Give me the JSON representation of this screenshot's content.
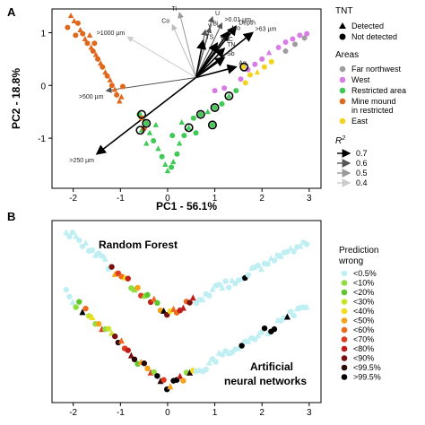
{
  "chart_data": [
    {
      "panel": "A",
      "type": "scatter",
      "xlabel": "PC1 - 56.1%",
      "ylabel": "PC2 - 18.8%",
      "xlim": [
        -2.45,
        3.25
      ],
      "ylim": [
        -1.95,
        1.45
      ],
      "xticks": [
        -2,
        -1,
        0,
        1,
        2,
        3
      ],
      "yticks": [
        1,
        0,
        -1
      ],
      "grid": false,
      "legends": {
        "tnt": {
          "title": "TNT",
          "entries": [
            {
              "label": "Detected",
              "marker": "triangle"
            },
            {
              "label": "Not detected",
              "marker": "circle"
            }
          ]
        },
        "areas": {
          "title": "Areas",
          "entries": [
            {
              "label": "Far northwest",
              "color": "#9e9e9e"
            },
            {
              "label": "West",
              "color": "#d97be6"
            },
            {
              "label": "Restricted area",
              "color": "#3fca55"
            },
            {
              "label": "Mine mound",
              "label2": "in restricted",
              "color": "#e0681c"
            },
            {
              "label": "East",
              "color": "#f2d320"
            }
          ]
        },
        "r2": {
          "title": "R",
          "sup": "2",
          "entries": [
            {
              "label": "0.7",
              "shade": "#000000"
            },
            {
              "label": "0.6",
              "shade": "#555555"
            },
            {
              "label": "0.5",
              "shade": "#999999"
            },
            {
              "label": "0.4",
              "shade": "#cccccc"
            }
          ]
        }
      },
      "loadings": [
        {
          "label": "Ti",
          "x": 0.25,
          "y": 1.38,
          "shade": "#999999"
        },
        {
          "label": "Co",
          "x": 0.1,
          "y": 1.15,
          "shade": "#bbbbbb"
        },
        {
          "label": "U",
          "x": 0.95,
          "y": 1.3,
          "shade": "#555555"
        },
        {
          "label": ">0.01 µm",
          "x": 1.15,
          "y": 1.18,
          "shade": "#555555"
        },
        {
          "label": "V",
          "x": 0.8,
          "y": 1.05,
          "shade": "#555555"
        },
        {
          "label": "Bi",
          "x": 0.9,
          "y": 1.1,
          "shade": "#555555"
        },
        {
          "label": "Depth",
          "x": 1.45,
          "y": 1.12,
          "shade": "#000000"
        },
        {
          "label": "Mo",
          "x": 1.3,
          "y": 1.02,
          "shade": "#000000"
        },
        {
          "label": ">63 µm",
          "x": 1.8,
          "y": 1.0,
          "shade": "#000000"
        },
        {
          "label": "TS",
          "x": 0.75,
          "y": 0.85,
          "shade": "#000000"
        },
        {
          "label": "TOC",
          "x": 1.05,
          "y": 0.8,
          "shade": "#000000"
        },
        {
          "label": "TN",
          "x": 1.2,
          "y": 0.7,
          "shade": "#000000"
        },
        {
          "label": "Sb",
          "x": 1.2,
          "y": 0.53,
          "shade": "#000000"
        },
        {
          "label": "Ag",
          "x": 1.45,
          "y": 0.35,
          "shade": "#000000"
        },
        {
          "label": ">1000 µm",
          "x": -0.85,
          "y": 0.92,
          "shade": "#cccccc"
        },
        {
          "label": ">500 µm",
          "x": -1.3,
          "y": -0.1,
          "shade": "#555555"
        },
        {
          "label": ">250 µm",
          "x": -1.5,
          "y": -1.3,
          "shade": "#000000"
        }
      ],
      "points": [
        {
          "x": -2.05,
          "y": 1.32,
          "g": "mine",
          "t": "tri"
        },
        {
          "x": -1.98,
          "y": 1.22,
          "g": "mine",
          "t": "tri"
        },
        {
          "x": -1.9,
          "y": 1.18,
          "g": "mine",
          "t": "dot"
        },
        {
          "x": -1.85,
          "y": 1.05,
          "g": "mine",
          "t": "tri"
        },
        {
          "x": -1.8,
          "y": 0.98,
          "g": "mine",
          "t": "dot"
        },
        {
          "x": -1.75,
          "y": 0.88,
          "g": "mine",
          "t": "tri"
        },
        {
          "x": -1.7,
          "y": 0.8,
          "g": "mine",
          "t": "dot"
        },
        {
          "x": -1.62,
          "y": 0.72,
          "g": "mine",
          "t": "tri"
        },
        {
          "x": -1.58,
          "y": 0.65,
          "g": "mine",
          "t": "dot"
        },
        {
          "x": -1.52,
          "y": 0.58,
          "g": "mine",
          "t": "tri"
        },
        {
          "x": -1.48,
          "y": 0.5,
          "g": "mine",
          "t": "dot"
        },
        {
          "x": -1.42,
          "y": 0.42,
          "g": "mine",
          "t": "tri"
        },
        {
          "x": -1.38,
          "y": 0.35,
          "g": "mine",
          "t": "dot"
        },
        {
          "x": -1.32,
          "y": 0.25,
          "g": "mine",
          "t": "tri"
        },
        {
          "x": -1.28,
          "y": 0.18,
          "g": "mine",
          "t": "dot"
        },
        {
          "x": -1.22,
          "y": 0.1,
          "g": "mine",
          "t": "tri"
        },
        {
          "x": -1.18,
          "y": 0.0,
          "g": "mine",
          "t": "dot"
        },
        {
          "x": -1.12,
          "y": -0.08,
          "g": "mine",
          "t": "tri"
        },
        {
          "x": -1.08,
          "y": -0.18,
          "g": "mine",
          "t": "dot"
        },
        {
          "x": -1.02,
          "y": -0.3,
          "g": "mine",
          "t": "tri"
        },
        {
          "x": -0.98,
          "y": -0.22,
          "g": "mine",
          "t": "tri"
        },
        {
          "x": -2.12,
          "y": 1.1,
          "g": "mine",
          "t": "dot"
        },
        {
          "x": -1.95,
          "y": 0.95,
          "g": "mine",
          "t": "dot"
        },
        {
          "x": -1.65,
          "y": 0.95,
          "g": "mine",
          "t": "tri"
        },
        {
          "x": -1.55,
          "y": 0.8,
          "g": "mine",
          "t": "dot"
        },
        {
          "x": -0.95,
          "y": -0.02,
          "g": "mine",
          "t": "dot"
        },
        {
          "x": -0.6,
          "y": -0.55,
          "g": "restricted",
          "t": "dot"
        },
        {
          "x": -0.52,
          "y": -0.62,
          "g": "restricted",
          "t": "tri"
        },
        {
          "x": -0.45,
          "y": -0.72,
          "g": "restricted",
          "t": "dot"
        },
        {
          "x": -0.55,
          "y": -0.85,
          "g": "restricted",
          "t": "tri"
        },
        {
          "x": -0.38,
          "y": -0.9,
          "g": "restricted",
          "t": "tri"
        },
        {
          "x": -0.3,
          "y": -1.05,
          "g": "restricted",
          "t": "dot"
        },
        {
          "x": -0.2,
          "y": -1.2,
          "g": "restricted",
          "t": "tri"
        },
        {
          "x": -0.12,
          "y": -1.35,
          "g": "restricted",
          "t": "dot"
        },
        {
          "x": -0.05,
          "y": -1.5,
          "g": "restricted",
          "t": "tri"
        },
        {
          "x": 0.0,
          "y": -1.62,
          "g": "restricted",
          "t": "tri"
        },
        {
          "x": 0.08,
          "y": -1.55,
          "g": "restricted",
          "t": "dot"
        },
        {
          "x": 0.12,
          "y": -1.45,
          "g": "restricted",
          "t": "tri"
        },
        {
          "x": 0.2,
          "y": -1.3,
          "g": "restricted",
          "t": "dot"
        },
        {
          "x": 0.25,
          "y": -1.1,
          "g": "restricted",
          "t": "tri"
        },
        {
          "x": 0.35,
          "y": -0.95,
          "g": "restricted",
          "t": "dot"
        },
        {
          "x": 0.45,
          "y": -0.8,
          "g": "restricted",
          "t": "tri"
        },
        {
          "x": 0.55,
          "y": -0.62,
          "g": "restricted",
          "t": "dot"
        },
        {
          "x": 0.7,
          "y": -0.55,
          "g": "restricted",
          "t": "dot"
        },
        {
          "x": 0.85,
          "y": -0.5,
          "g": "restricted",
          "t": "tri"
        },
        {
          "x": 1.0,
          "y": -0.42,
          "g": "restricted",
          "t": "dot"
        },
        {
          "x": 1.15,
          "y": -0.35,
          "g": "restricted",
          "t": "dot"
        },
        {
          "x": 1.3,
          "y": -0.2,
          "g": "restricted",
          "t": "tri"
        },
        {
          "x": 1.45,
          "y": -0.1,
          "g": "restricted",
          "t": "dot"
        },
        {
          "x": 0.6,
          "y": -0.9,
          "g": "restricted",
          "t": "dot"
        },
        {
          "x": -0.25,
          "y": -0.75,
          "g": "restricted",
          "t": "tri"
        },
        {
          "x": 0.3,
          "y": -0.7,
          "g": "restricted",
          "t": "tri"
        },
        {
          "x": -0.45,
          "y": -1.1,
          "g": "restricted",
          "t": "tri"
        },
        {
          "x": 0.1,
          "y": -0.95,
          "g": "restricted",
          "t": "dot"
        },
        {
          "x": 0.95,
          "y": -0.75,
          "g": "restricted",
          "t": "dot"
        },
        {
          "x": -0.55,
          "y": -0.62,
          "g": "mine",
          "t": "dot"
        },
        {
          "x": -0.5,
          "y": -0.82,
          "g": "mine",
          "t": "dot"
        },
        {
          "x": 1.7,
          "y": 0.3,
          "g": "west",
          "t": "dot"
        },
        {
          "x": 1.85,
          "y": 0.4,
          "g": "west",
          "t": "dot"
        },
        {
          "x": 2.0,
          "y": 0.5,
          "g": "west",
          "t": "dot"
        },
        {
          "x": 2.15,
          "y": 0.62,
          "g": "west",
          "t": "tri"
        },
        {
          "x": 2.35,
          "y": 0.72,
          "g": "west",
          "t": "dot"
        },
        {
          "x": 2.5,
          "y": 0.82,
          "g": "west",
          "t": "dot"
        },
        {
          "x": 2.65,
          "y": 0.88,
          "g": "west",
          "t": "dot"
        },
        {
          "x": 2.8,
          "y": 0.95,
          "g": "west",
          "t": "dot"
        },
        {
          "x": 2.95,
          "y": 0.98,
          "g": "west",
          "t": "dot"
        },
        {
          "x": 1.55,
          "y": 0.12,
          "g": "west",
          "t": "dot"
        },
        {
          "x": 1.0,
          "y": -0.1,
          "g": "west",
          "t": "dot"
        },
        {
          "x": 1.2,
          "y": -0.05,
          "g": "west",
          "t": "dot"
        },
        {
          "x": 1.6,
          "y": 0.35,
          "g": "east",
          "t": "dot"
        },
        {
          "x": 1.75,
          "y": 0.2,
          "g": "east",
          "t": "dot"
        },
        {
          "x": 1.9,
          "y": 0.25,
          "g": "east",
          "t": "tri"
        },
        {
          "x": 2.05,
          "y": 0.35,
          "g": "east",
          "t": "dot"
        },
        {
          "x": 2.2,
          "y": 0.45,
          "g": "east",
          "t": "dot"
        },
        {
          "x": 1.65,
          "y": 0.05,
          "g": "east",
          "t": "dot"
        },
        {
          "x": 2.5,
          "y": 0.65,
          "g": "far",
          "t": "dot"
        },
        {
          "x": 2.7,
          "y": 0.78,
          "g": "far",
          "t": "dot"
        },
        {
          "x": 2.9,
          "y": 0.9,
          "g": "far",
          "t": "dot"
        }
      ]
    },
    {
      "panel": "B",
      "type": "scatter",
      "xlim": [
        -2.45,
        3.25
      ],
      "xticks": [
        -2,
        -1,
        0,
        1,
        2,
        3
      ],
      "annotations": [
        "Random Forest",
        "Artificial",
        "neural networks"
      ],
      "legend": {
        "title": "Prediction",
        "title2": "wrong",
        "entries": [
          {
            "label": "<0.5%",
            "color": "#bfeff2"
          },
          {
            "label": "<10%",
            "color": "#8fdd3e"
          },
          {
            "label": "<20%",
            "color": "#5cc72b"
          },
          {
            "label": "<30%",
            "color": "#c9e22a"
          },
          {
            "label": "<40%",
            "color": "#f3dd1c"
          },
          {
            "label": "<50%",
            "color": "#f6a21b"
          },
          {
            "label": "<60%",
            "color": "#ee6a1e"
          },
          {
            "label": "<70%",
            "color": "#e03a22"
          },
          {
            "label": "<80%",
            "color": "#c01c1c"
          },
          {
            "label": "<90%",
            "color": "#7a0f0f"
          },
          {
            "label": "<99.5%",
            "color": "#2a0808"
          },
          {
            "label": ">99.5%",
            "color": "#000000"
          }
        ]
      }
    }
  ],
  "panel_a_label": "A",
  "panel_b_label": "B"
}
